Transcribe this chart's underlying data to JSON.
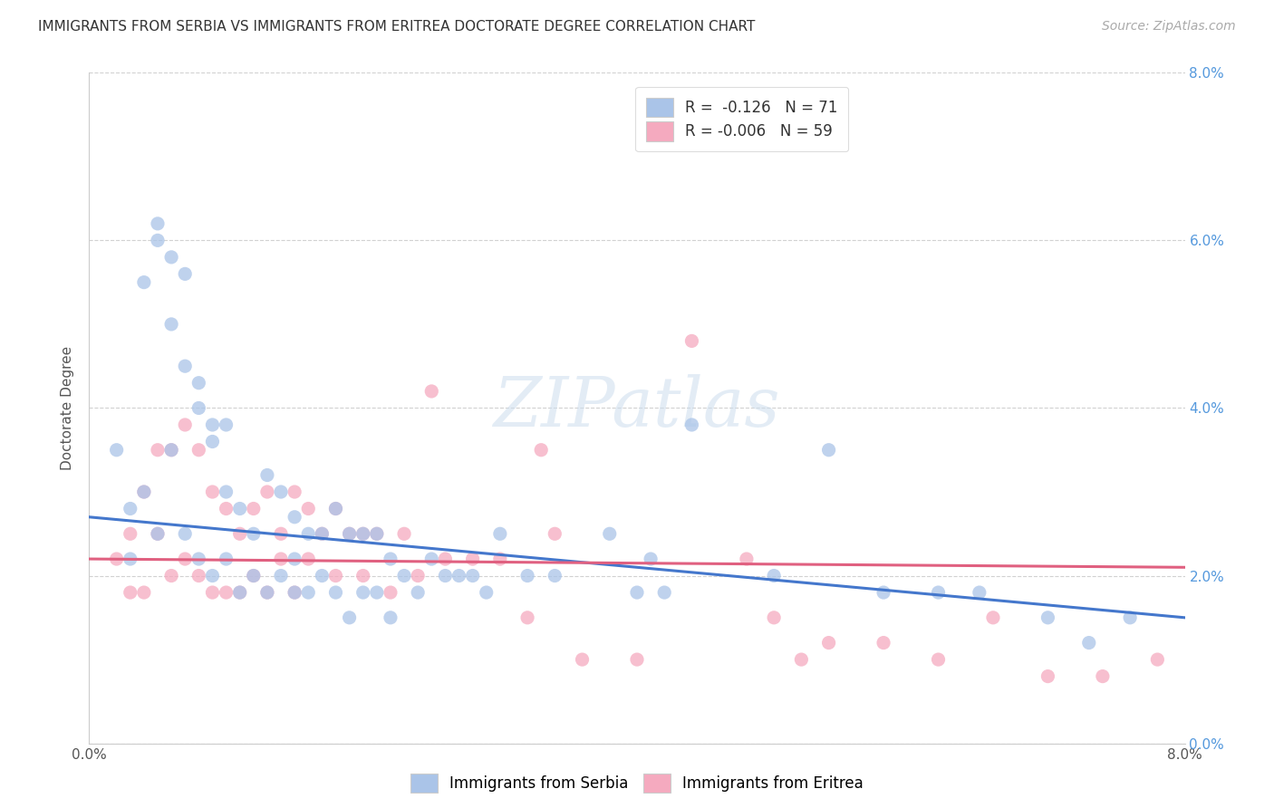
{
  "title": "IMMIGRANTS FROM SERBIA VS IMMIGRANTS FROM ERITREA DOCTORATE DEGREE CORRELATION CHART",
  "source": "Source: ZipAtlas.com",
  "ylabel": "Doctorate Degree",
  "right_yticks": [
    "0.0%",
    "2.0%",
    "4.0%",
    "6.0%",
    "8.0%"
  ],
  "right_ytick_vals": [
    0.0,
    0.02,
    0.04,
    0.06,
    0.08
  ],
  "xlim": [
    0.0,
    0.08
  ],
  "ylim": [
    0.0,
    0.08
  ],
  "serbia_color": "#aac4e8",
  "eritrea_color": "#f5aabf",
  "serbia_line_color": "#4477cc",
  "eritrea_line_color": "#e06080",
  "serbia_R": -0.126,
  "serbia_N": 71,
  "eritrea_R": -0.006,
  "eritrea_N": 59,
  "legend_serbia_label": "Immigrants from Serbia",
  "legend_eritrea_label": "Immigrants from Eritrea",
  "serbia_scatter_x": [
    0.002,
    0.003,
    0.003,
    0.004,
    0.004,
    0.005,
    0.005,
    0.005,
    0.006,
    0.006,
    0.006,
    0.007,
    0.007,
    0.007,
    0.008,
    0.008,
    0.008,
    0.009,
    0.009,
    0.009,
    0.01,
    0.01,
    0.01,
    0.011,
    0.011,
    0.012,
    0.012,
    0.013,
    0.013,
    0.014,
    0.014,
    0.015,
    0.015,
    0.015,
    0.016,
    0.016,
    0.017,
    0.017,
    0.018,
    0.018,
    0.019,
    0.019,
    0.02,
    0.02,
    0.021,
    0.021,
    0.022,
    0.022,
    0.023,
    0.024,
    0.025,
    0.026,
    0.027,
    0.028,
    0.029,
    0.03,
    0.032,
    0.034,
    0.038,
    0.04,
    0.041,
    0.042,
    0.044,
    0.05,
    0.054,
    0.058,
    0.062,
    0.065,
    0.07,
    0.073,
    0.076
  ],
  "serbia_scatter_y": [
    0.035,
    0.028,
    0.022,
    0.03,
    0.055,
    0.06,
    0.062,
    0.025,
    0.058,
    0.05,
    0.035,
    0.056,
    0.045,
    0.025,
    0.043,
    0.04,
    0.022,
    0.038,
    0.036,
    0.02,
    0.038,
    0.03,
    0.022,
    0.028,
    0.018,
    0.025,
    0.02,
    0.032,
    0.018,
    0.03,
    0.02,
    0.027,
    0.022,
    0.018,
    0.025,
    0.018,
    0.025,
    0.02,
    0.028,
    0.018,
    0.025,
    0.015,
    0.025,
    0.018,
    0.025,
    0.018,
    0.022,
    0.015,
    0.02,
    0.018,
    0.022,
    0.02,
    0.02,
    0.02,
    0.018,
    0.025,
    0.02,
    0.02,
    0.025,
    0.018,
    0.022,
    0.018,
    0.038,
    0.02,
    0.035,
    0.018,
    0.018,
    0.018,
    0.015,
    0.012,
    0.015
  ],
  "eritrea_scatter_x": [
    0.002,
    0.003,
    0.003,
    0.004,
    0.004,
    0.005,
    0.005,
    0.006,
    0.006,
    0.007,
    0.007,
    0.008,
    0.008,
    0.009,
    0.009,
    0.01,
    0.01,
    0.011,
    0.011,
    0.012,
    0.012,
    0.013,
    0.013,
    0.014,
    0.014,
    0.015,
    0.015,
    0.016,
    0.016,
    0.017,
    0.018,
    0.018,
    0.019,
    0.02,
    0.02,
    0.021,
    0.022,
    0.023,
    0.024,
    0.025,
    0.026,
    0.028,
    0.03,
    0.032,
    0.034,
    0.036,
    0.04,
    0.044,
    0.048,
    0.05,
    0.052,
    0.054,
    0.058,
    0.062,
    0.066,
    0.07,
    0.074,
    0.078,
    0.033
  ],
  "eritrea_scatter_y": [
    0.022,
    0.025,
    0.018,
    0.03,
    0.018,
    0.035,
    0.025,
    0.035,
    0.02,
    0.038,
    0.022,
    0.035,
    0.02,
    0.03,
    0.018,
    0.028,
    0.018,
    0.025,
    0.018,
    0.028,
    0.02,
    0.03,
    0.018,
    0.025,
    0.022,
    0.03,
    0.018,
    0.028,
    0.022,
    0.025,
    0.028,
    0.02,
    0.025,
    0.025,
    0.02,
    0.025,
    0.018,
    0.025,
    0.02,
    0.042,
    0.022,
    0.022,
    0.022,
    0.015,
    0.025,
    0.01,
    0.01,
    0.048,
    0.022,
    0.015,
    0.01,
    0.012,
    0.012,
    0.01,
    0.015,
    0.008,
    0.008,
    0.01,
    0.035
  ],
  "background_color": "#ffffff",
  "grid_color": "#cccccc",
  "watermark": "ZIPatlas"
}
